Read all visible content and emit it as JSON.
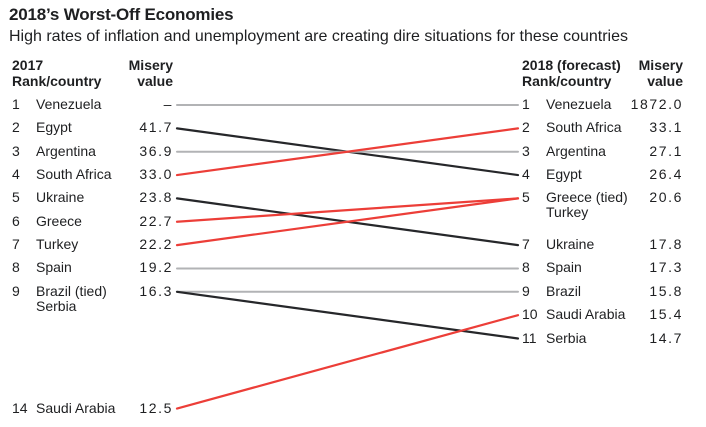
{
  "title": "2018’s Worst-Off Economies",
  "subtitle": "High rates of inflation and unemployment are creating dire situations for these countries",
  "header_left": {
    "year": "2017",
    "rank": "Rank/country",
    "misery_1": "Misery",
    "misery_2": "value"
  },
  "header_right": {
    "year": "2018 (forecast)",
    "rank": "Rank/country",
    "misery_1": "Misery",
    "misery_2": "value"
  },
  "left_rows": [
    {
      "rank": "1",
      "country": "Venezuela",
      "value": "–"
    },
    {
      "rank": "2",
      "country": "Egypt",
      "value": "41.7"
    },
    {
      "rank": "3",
      "country": "Argentina",
      "value": "36.9"
    },
    {
      "rank": "4",
      "country": "South Africa",
      "value": "33.0"
    },
    {
      "rank": "5",
      "country": "Ukraine",
      "value": "23.8"
    },
    {
      "rank": "6",
      "country": "Greece",
      "value": "22.7"
    },
    {
      "rank": "7",
      "country": "Turkey",
      "value": "22.2"
    },
    {
      "rank": "8",
      "country": "Spain",
      "value": "19.2"
    },
    {
      "rank": "9",
      "country": "Brazil (tied)",
      "country2": "Serbia",
      "value": "16.3"
    },
    {
      "rank": "14",
      "country": "Saudi Arabia",
      "value": "12.5"
    }
  ],
  "right_rows": [
    {
      "rank": "1",
      "country": "Venezuela",
      "value": "1872.0"
    },
    {
      "rank": "2",
      "country": "South Africa",
      "value": "33.1"
    },
    {
      "rank": "3",
      "country": "Argentina",
      "value": "27.1"
    },
    {
      "rank": "4",
      "country": "Egypt",
      "value": "26.4"
    },
    {
      "rank": "5",
      "country": "Greece (tied)",
      "country2": "Turkey",
      "value": "20.6"
    },
    {
      "rank": "7",
      "country": "Ukraine",
      "value": "17.8"
    },
    {
      "rank": "8",
      "country": "Spain",
      "value": "17.3"
    },
    {
      "rank": "9",
      "country": "Brazil",
      "value": "15.8"
    },
    {
      "rank": "10",
      "country": "Saudi Arabia",
      "value": "15.4"
    },
    {
      "rank": "11",
      "country": "Serbia",
      "value": "14.7"
    }
  ],
  "lines": [
    {
      "country": "Venezuela",
      "from": 1,
      "to": 1,
      "color": "gray"
    },
    {
      "country": "Egypt",
      "from": 2,
      "to": 4,
      "color": "black"
    },
    {
      "country": "Argentina",
      "from": 3,
      "to": 3,
      "color": "gray"
    },
    {
      "country": "South Africa",
      "from": 4,
      "to": 2,
      "color": "red"
    },
    {
      "country": "Ukraine",
      "from": 5,
      "to": 7,
      "color": "black"
    },
    {
      "country": "Greece",
      "from": 6,
      "to": 5,
      "color": "red"
    },
    {
      "country": "Turkey",
      "from": 7,
      "to": 5,
      "color": "red"
    },
    {
      "country": "Spain",
      "from": 8,
      "to": 8,
      "color": "gray"
    },
    {
      "country": "Brazil",
      "from": 9,
      "to": 9,
      "color": "gray"
    },
    {
      "country": "Serbia",
      "from": 9,
      "to": 11,
      "color": "black"
    },
    {
      "country": "Saudi Arabia",
      "from": 14,
      "to": 10,
      "color": "red"
    }
  ],
  "colors": {
    "red": "#ec3e38",
    "black": "#26272a",
    "gray": "#b2b3b5",
    "text": "#1e1f21"
  },
  "chart_data": {
    "type": "line",
    "subtype": "slope-chart",
    "title": "2018’s Worst-Off Economies",
    "subtitle": "High rates of inflation and unemployment are creating dire situations for these countries",
    "x_categories": [
      "2017",
      "2018 (forecast)"
    ],
    "value_label": "Misery value",
    "series": [
      {
        "name": "Venezuela",
        "rank_2017": 1,
        "value_2017": null,
        "rank_2018": 1,
        "value_2018": 1872.0,
        "trend": "unchanged"
      },
      {
        "name": "Egypt",
        "rank_2017": 2,
        "value_2017": 41.7,
        "rank_2018": 4,
        "value_2018": 26.4,
        "trend": "down"
      },
      {
        "name": "Argentina",
        "rank_2017": 3,
        "value_2017": 36.9,
        "rank_2018": 3,
        "value_2018": 27.1,
        "trend": "unchanged"
      },
      {
        "name": "South Africa",
        "rank_2017": 4,
        "value_2017": 33.0,
        "rank_2018": 2,
        "value_2018": 33.1,
        "trend": "up"
      },
      {
        "name": "Ukraine",
        "rank_2017": 5,
        "value_2017": 23.8,
        "rank_2018": 7,
        "value_2018": 17.8,
        "trend": "down"
      },
      {
        "name": "Greece",
        "rank_2017": 6,
        "value_2017": 22.7,
        "rank_2018": 5,
        "value_2018": 20.6,
        "trend": "up",
        "tied_2018": "Turkey"
      },
      {
        "name": "Turkey",
        "rank_2017": 7,
        "value_2017": 22.2,
        "rank_2018": 5,
        "value_2018": 20.6,
        "trend": "up",
        "tied_2018": "Greece"
      },
      {
        "name": "Spain",
        "rank_2017": 8,
        "value_2017": 19.2,
        "rank_2018": 8,
        "value_2018": 17.3,
        "trend": "unchanged"
      },
      {
        "name": "Brazil",
        "rank_2017": 9,
        "value_2017": 16.3,
        "rank_2018": 9,
        "value_2018": 15.8,
        "trend": "unchanged",
        "tied_2017": "Serbia"
      },
      {
        "name": "Serbia",
        "rank_2017": 9,
        "value_2017": 16.3,
        "rank_2018": 11,
        "value_2018": 14.7,
        "trend": "down",
        "tied_2017": "Brazil"
      },
      {
        "name": "Saudi Arabia",
        "rank_2017": 14,
        "value_2017": 12.5,
        "rank_2018": 10,
        "value_2018": 15.4,
        "trend": "up"
      }
    ],
    "legend_position": "none",
    "grid": false,
    "line_color_meaning": {
      "red": "rank worsened (moved up list)",
      "black": "rank improved (moved down list)",
      "gray": "rank unchanged"
    }
  }
}
